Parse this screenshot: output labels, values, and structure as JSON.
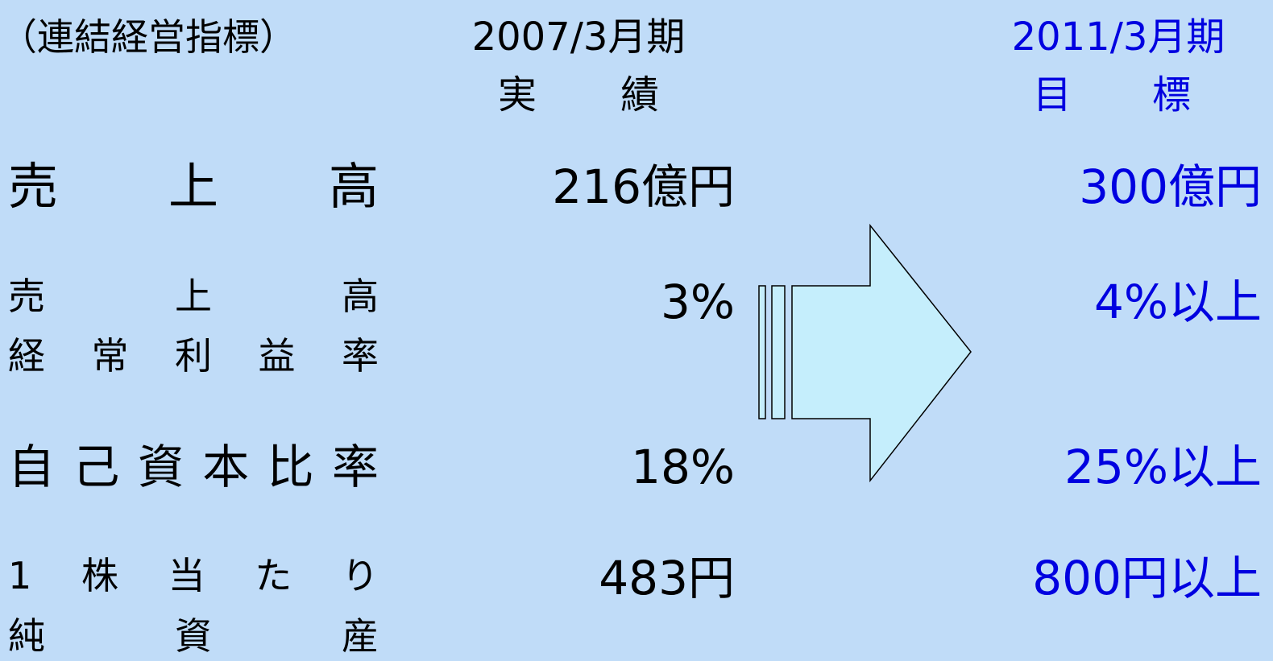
{
  "header": {
    "label": "（連結経営指標）",
    "actual": {
      "period": "2007/3月期",
      "caption": "実績"
    },
    "target": {
      "period": "2011/3月期",
      "caption": "目標"
    }
  },
  "rows": [
    {
      "label": [
        "売上高"
      ],
      "actual": "216億円",
      "target": "300億円"
    },
    {
      "label": [
        "売上高",
        "経常利益率"
      ],
      "actual": "3%",
      "target": "4%以上"
    },
    {
      "label": [
        "自己資本比率"
      ],
      "actual": "18%",
      "target": "25%以上"
    },
    {
      "label": [
        "1株当たり",
        "純資産"
      ],
      "actual": "483円",
      "target": "800円以上"
    }
  ]
}
